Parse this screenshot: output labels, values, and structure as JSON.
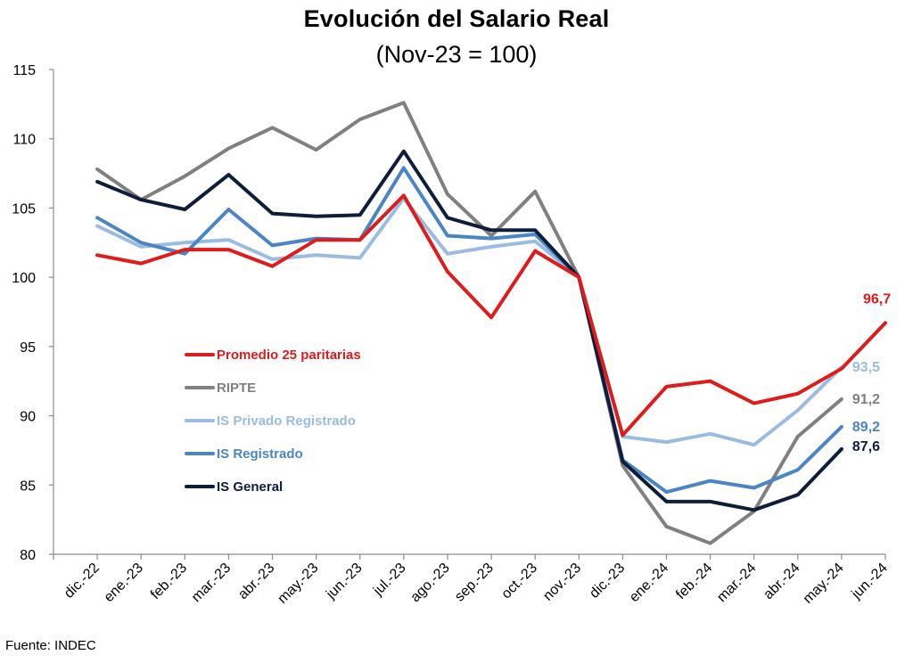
{
  "chart_data": {
    "type": "line",
    "title": "Evolución del Salario Real",
    "subtitle": "(Nov-23 = 100)",
    "source": "Fuente: INDEC",
    "categories": [
      "dic.-22",
      "ene.-23",
      "feb.-23",
      "mar.-23",
      "abr.-23",
      "may.-23",
      "jun.-23",
      "jul.-23",
      "ago.-23",
      "sep.-23",
      "oct.-23",
      "nov.-23",
      "dic.-23",
      "ene.-24",
      "feb.-24",
      "mar.-24",
      "abr.-24",
      "may.-24",
      "jun.-24"
    ],
    "ylim": [
      80,
      115
    ],
    "yticks": [
      80,
      85,
      90,
      95,
      100,
      105,
      110,
      115
    ],
    "grid": false,
    "legend_position": "center-left",
    "series": [
      {
        "name": "RIPTE",
        "color": "#808080",
        "end_label": "91,2",
        "values": [
          107.8,
          105.6,
          107.3,
          109.3,
          110.8,
          109.2,
          111.4,
          112.6,
          106.0,
          103.0,
          106.2,
          100.0,
          86.4,
          82.0,
          80.8,
          83.1,
          88.5,
          91.2,
          null
        ]
      },
      {
        "name": "IS Privado Registrado",
        "color": "#9bbce2",
        "end_label": "93,5",
        "values": [
          103.7,
          102.2,
          102.5,
          102.7,
          101.3,
          101.6,
          101.4,
          105.7,
          101.7,
          102.2,
          102.6,
          100.0,
          88.5,
          88.1,
          88.7,
          87.9,
          90.4,
          93.5,
          null
        ]
      },
      {
        "name": "IS Registrado",
        "color": "#4a86c5",
        "end_label": "89,2",
        "values": [
          104.3,
          102.5,
          101.7,
          104.9,
          102.3,
          102.8,
          102.7,
          107.9,
          103.0,
          102.8,
          103.1,
          100.0,
          86.8,
          84.5,
          85.3,
          84.8,
          86.1,
          89.2,
          null
        ]
      },
      {
        "name": "IS General",
        "color": "#0e1e3a",
        "end_label": "87,6",
        "values": [
          106.9,
          105.6,
          104.9,
          107.4,
          104.6,
          104.4,
          104.5,
          109.1,
          104.3,
          103.4,
          103.4,
          100.0,
          86.7,
          83.8,
          83.8,
          83.2,
          84.3,
          87.6,
          null
        ]
      },
      {
        "name": "Promedio 25 paritarias",
        "color": "#e01b1b",
        "end_label": "96,7",
        "values": [
          101.6,
          101.0,
          102.0,
          102.0,
          100.8,
          102.7,
          102.7,
          105.9,
          100.4,
          97.1,
          101.9,
          100.0,
          88.6,
          92.1,
          92.5,
          90.9,
          91.6,
          93.4,
          96.7
        ]
      }
    ],
    "legend_order": [
      "Promedio 25 paritarias",
      "RIPTE",
      "IS Privado Registrado",
      "IS Registrado",
      "IS General"
    ]
  }
}
